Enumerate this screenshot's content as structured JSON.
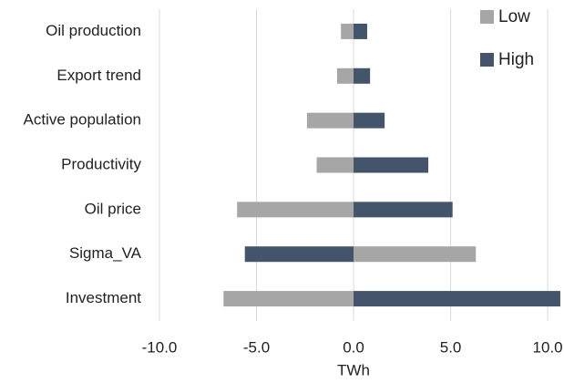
{
  "chart_data": {
    "type": "bar",
    "orientation": "horizontal",
    "categories": [
      "Oil production",
      "Export trend",
      "Active population",
      "Productivity",
      "Oil price",
      "Sigma_VA",
      "Investment"
    ],
    "series": [
      {
        "name": "Low",
        "color": "#a6a6a6",
        "values": [
          -0.65,
          -0.85,
          -2.4,
          -1.9,
          -6.0,
          6.3,
          -6.7
        ]
      },
      {
        "name": "High",
        "color": "#44546a",
        "values": [
          0.7,
          0.85,
          1.6,
          3.85,
          5.1,
          -5.6,
          10.65
        ]
      }
    ],
    "xlabel": "TWh",
    "xlim": [
      -10,
      10.7
    ],
    "xticks": [
      {
        "value": -10,
        "label": "-10.0"
      },
      {
        "value": -5,
        "label": "-5.0"
      },
      {
        "value": 0,
        "label": "0.0"
      },
      {
        "value": 5,
        "label": "5.0"
      },
      {
        "value": 10,
        "label": "10.0"
      }
    ],
    "grid": true,
    "legend": "top-right"
  }
}
